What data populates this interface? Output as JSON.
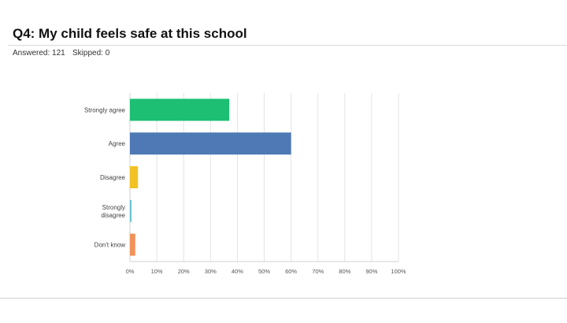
{
  "question": {
    "title": "Q4: My child feels safe at this school",
    "answered": "Answered: 121",
    "skipped": "Skipped: 0"
  },
  "chart_data": {
    "type": "bar",
    "orientation": "horizontal",
    "categories": [
      [
        "Strongly agree"
      ],
      [
        "Agree"
      ],
      [
        "Disagree"
      ],
      [
        "Strongly",
        "disagree"
      ],
      [
        "Don't know"
      ]
    ],
    "values": [
      0.37,
      0.6,
      0.03,
      0.005,
      0.02
    ],
    "colors": [
      "#1dbf73",
      "#4e79b5",
      "#f2c224",
      "#6cc3d5",
      "#f0925a"
    ],
    "x_ticks": [
      "0%",
      "10%",
      "20%",
      "30%",
      "40%",
      "50%",
      "60%",
      "70%",
      "80%",
      "90%",
      "100%"
    ],
    "xlim": [
      0,
      1
    ],
    "grid": "vertical"
  }
}
